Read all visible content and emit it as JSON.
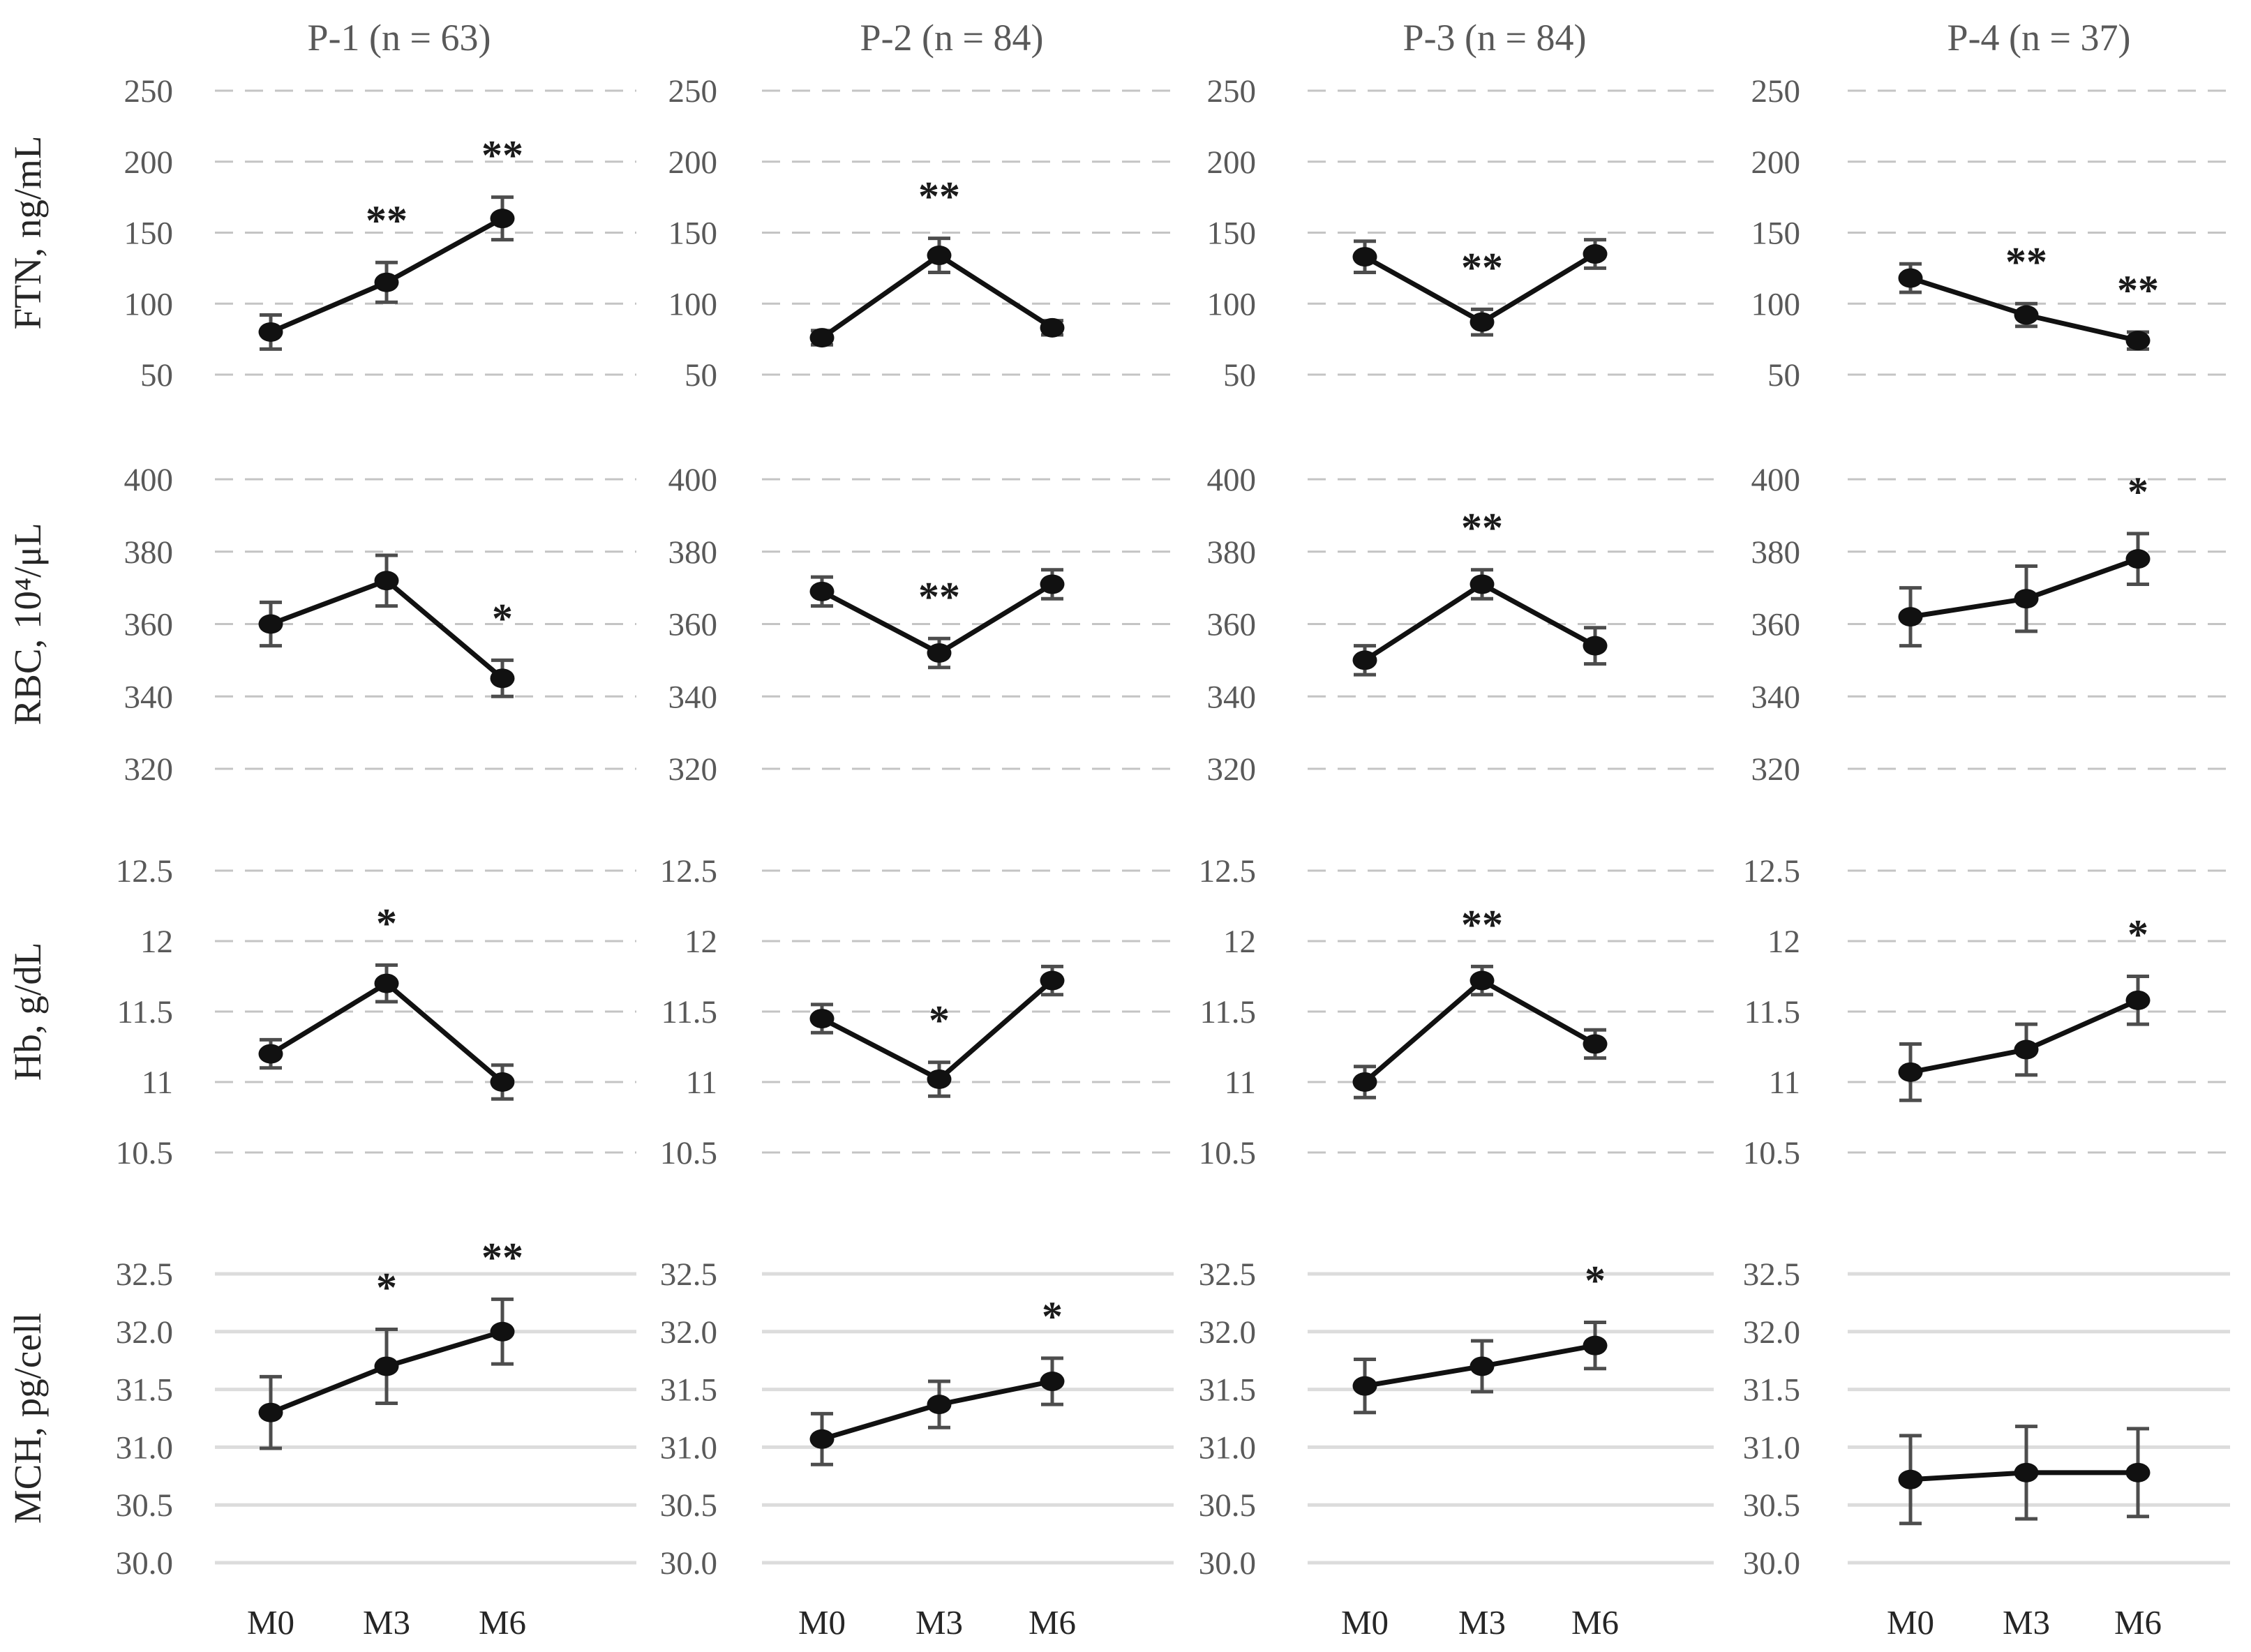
{
  "x_categories": [
    "M0",
    "M3",
    "M6"
  ],
  "column_titles": [
    "P-1  (n = 63)",
    "P-2  (n = 84)",
    "P-3  (n = 84)",
    "P-4  (n = 37)"
  ],
  "chart_data": [
    {
      "type": "line",
      "ylabel": "FTN, ng/mL",
      "ylim": [
        50,
        250
      ],
      "ytick_labels": [
        "250",
        "200",
        "150",
        "100",
        "50"
      ],
      "grid_style": "dashed",
      "legend": "none",
      "categories": [
        "M0",
        "M3",
        "M6"
      ],
      "panels": [
        {
          "column": "P-1  (n = 63)",
          "values": [
            80,
            115,
            160
          ],
          "errors": [
            12,
            14,
            15
          ],
          "sig": [
            "",
            "**",
            "**"
          ]
        },
        {
          "column": "P-2  (n = 84)",
          "values": [
            76,
            134,
            83
          ],
          "errors": [
            5,
            12,
            5
          ],
          "sig": [
            "",
            "**",
            ""
          ]
        },
        {
          "column": "P-3  (n = 84)",
          "values": [
            133,
            87,
            135
          ],
          "errors": [
            11,
            9,
            10
          ],
          "sig": [
            "",
            "**",
            ""
          ]
        },
        {
          "column": "P-4  (n = 37)",
          "values": [
            118,
            92,
            74
          ],
          "errors": [
            10,
            8,
            6
          ],
          "sig": [
            "",
            "**",
            "**"
          ]
        }
      ]
    },
    {
      "type": "line",
      "ylabel": "RBC, 10⁴/μL",
      "ylim": [
        320,
        400
      ],
      "ytick_labels": [
        "400",
        "380",
        "360",
        "340",
        "320"
      ],
      "grid_style": "dashed",
      "legend": "none",
      "categories": [
        "M0",
        "M3",
        "M6"
      ],
      "panels": [
        {
          "column": "P-1  (n = 63)",
          "values": [
            360,
            372,
            345
          ],
          "errors": [
            6,
            7,
            5
          ],
          "sig": [
            "",
            "",
            "*"
          ]
        },
        {
          "column": "P-2  (n = 84)",
          "values": [
            369,
            352,
            371
          ],
          "errors": [
            4,
            4,
            4
          ],
          "sig": [
            "",
            "**",
            ""
          ]
        },
        {
          "column": "P-3  (n = 84)",
          "values": [
            350,
            371,
            354
          ],
          "errors": [
            4,
            4,
            5
          ],
          "sig": [
            "",
            "**",
            ""
          ]
        },
        {
          "column": "P-4  (n = 37)",
          "values": [
            362,
            367,
            378
          ],
          "errors": [
            8,
            9,
            7
          ],
          "sig": [
            "",
            "",
            "*"
          ]
        }
      ]
    },
    {
      "type": "line",
      "ylabel": "Hb, g/dL",
      "ylim": [
        10.5,
        12.5
      ],
      "ytick_labels": [
        "12.5",
        "12",
        "11.5",
        "11",
        "10.5"
      ],
      "grid_style": "dashed",
      "legend": "none",
      "categories": [
        "M0",
        "M3",
        "M6"
      ],
      "panels": [
        {
          "column": "P-1  (n = 63)",
          "values": [
            11.2,
            11.7,
            11.0
          ],
          "errors": [
            0.1,
            0.13,
            0.12
          ],
          "sig": [
            "",
            "*",
            ""
          ]
        },
        {
          "column": "P-2  (n = 84)",
          "values": [
            11.45,
            11.02,
            11.72
          ],
          "errors": [
            0.1,
            0.12,
            0.1
          ],
          "sig": [
            "",
            "*",
            ""
          ]
        },
        {
          "column": "P-3  (n = 84)",
          "values": [
            11.0,
            11.72,
            11.27
          ],
          "errors": [
            0.11,
            0.1,
            0.1
          ],
          "sig": [
            "",
            "**",
            ""
          ]
        },
        {
          "column": "P-4  (n = 37)",
          "values": [
            11.07,
            11.23,
            11.58
          ],
          "errors": [
            0.2,
            0.18,
            0.17
          ],
          "sig": [
            "",
            "",
            "*"
          ]
        }
      ]
    },
    {
      "type": "line",
      "ylabel": "MCH, pg/cell",
      "ylim": [
        30.0,
        32.5
      ],
      "ytick_labels": [
        "32.5",
        "32.0",
        "31.5",
        "31.0",
        "30.5",
        "30.0"
      ],
      "grid_style": "solid",
      "legend": "none",
      "categories": [
        "M0",
        "M3",
        "M6"
      ],
      "panels": [
        {
          "column": "P-1  (n = 63)",
          "values": [
            31.3,
            31.7,
            32.0
          ],
          "errors": [
            0.31,
            0.32,
            0.28
          ],
          "sig": [
            "",
            "*",
            "**"
          ]
        },
        {
          "column": "P-2  (n = 84)",
          "values": [
            31.07,
            31.37,
            31.57
          ],
          "errors": [
            0.22,
            0.2,
            0.2
          ],
          "sig": [
            "",
            "",
            "*"
          ]
        },
        {
          "column": "P-3  (n = 84)",
          "values": [
            31.53,
            31.7,
            31.88
          ],
          "errors": [
            0.23,
            0.22,
            0.2
          ],
          "sig": [
            "",
            "",
            "*"
          ]
        },
        {
          "column": "P-4  (n = 37)",
          "values": [
            30.72,
            30.78,
            30.78
          ],
          "errors": [
            0.38,
            0.4,
            0.38
          ],
          "sig": [
            "",
            "",
            ""
          ]
        }
      ]
    }
  ],
  "colors": {
    "background": "#ffffff",
    "point": "#111111",
    "line": "#111111",
    "error_bar": "#4d4d4d",
    "grid_dashed": "#c4c4c4",
    "grid_solid": "#dcdcdc",
    "tick_label": "#595959",
    "column_title": "#595959",
    "row_label": "#262626",
    "sig_marker": "#1a1a1a",
    "x_label": "#262626"
  }
}
